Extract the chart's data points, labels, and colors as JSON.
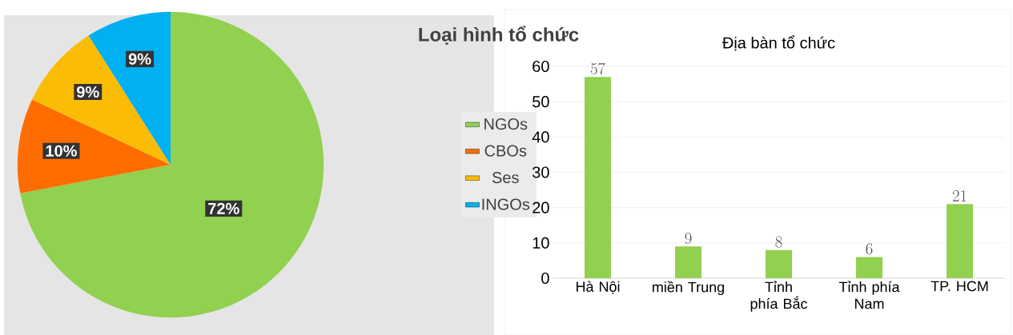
{
  "chart_data": [
    {
      "type": "pie",
      "title": "Loại hình tổ chức",
      "categories": [
        "NGOs",
        "CBOs",
        "Ses",
        "INGOs"
      ],
      "values": [
        72,
        10,
        9,
        9
      ],
      "colors": [
        "#92d050",
        "#ff6d00",
        "#fbbc05",
        "#00b0f0"
      ],
      "value_labels": [
        "72%",
        "10%",
        "9%",
        "9%"
      ],
      "legend": "right"
    },
    {
      "type": "bar",
      "title": "Địa bàn tổ chức",
      "categories": [
        "Hà Nội",
        "miền Trung",
        "Tỉnh phía Bắc",
        "Tỉnh phía Nam",
        "TP. HCM"
      ],
      "values": [
        57,
        9,
        8,
        6,
        21
      ],
      "color": "#92d050",
      "ylim": [
        0,
        60
      ],
      "yticks": [
        0,
        10,
        20,
        30,
        40,
        50,
        60
      ],
      "grid": "y",
      "data_labels": true
    }
  ]
}
